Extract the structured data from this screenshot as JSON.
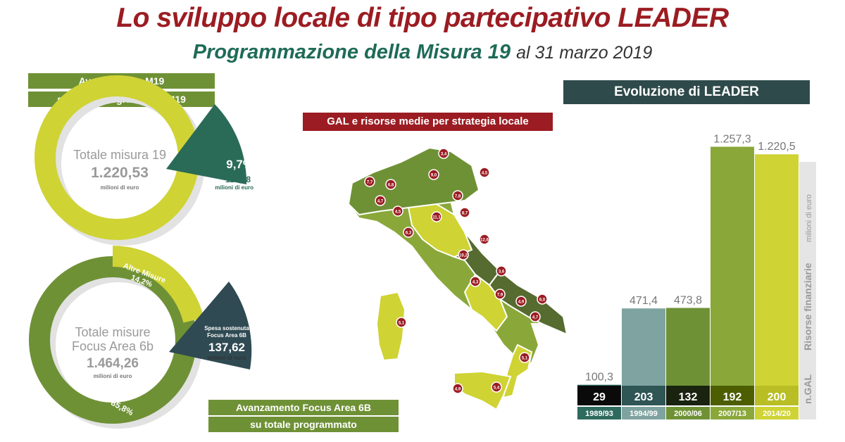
{
  "header": {
    "title": "Lo sviluppo locale di tipo partecipativo LEADER",
    "subtitle_main": "Programmazione della Misura 19",
    "subtitle_date": "al 31 marzo 2019"
  },
  "donut1": {
    "band1": "Avanzamento M19",
    "band2": "su totale programmato M19",
    "center_label": "Totale misura 19",
    "center_value": "1.220,53",
    "center_unit": "milioni di euro",
    "slice_pct": "9,7%",
    "slice_value": "118,08",
    "slice_unit": "milioni di euro",
    "slice_fraction": 0.097
  },
  "donut2": {
    "center_label_1": "Totale misure",
    "center_label_2": "Focus Area 6b",
    "center_value": "1.464,26",
    "center_unit": "milioni di euro",
    "altre_label": "Altre Misure",
    "altre_pct": "14,2%",
    "misura_label": "Misura 19 - 85,8%",
    "spesa_1": "Spesa sostenuta",
    "spesa_2": "Focus Area 6B",
    "spesa_value": "137,62",
    "spesa_unit": "milioni di euro",
    "band1": "Avanzamento Focus Area 6B",
    "band2": "su totale programmato"
  },
  "map": {
    "title": "GAL e risorse medie per strategia locale",
    "badges": [
      "3,4",
      "4,5",
      "7,7",
      "9,0",
      "6,8",
      "4,7",
      "4,5",
      "7,8",
      "11,1",
      "8,7",
      "6,3",
      "12,6",
      "10,2",
      "3,6",
      "4,3",
      "7,9",
      "4,9",
      "4,7",
      "6,0",
      "5,1",
      "5,1",
      "5,4",
      "4,9"
    ]
  },
  "leader": {
    "title": "Evoluzione di LEADER",
    "side_label_1": "Risorse finanziarie",
    "side_label_2": "milioni di euro",
    "side_label_3": "n.GAL",
    "colors": {
      "c1": "#2e6b5e",
      "c2": "#7fa3a0",
      "c3": "#6f9136",
      "c4": "#8aa83a",
      "c5": "#cfd334"
    },
    "periods": [
      {
        "period": "1989/93",
        "value": "100,3",
        "gal": "29",
        "v": 100.3
      },
      {
        "period": "1994/99",
        "value": "471,4",
        "gal": "203",
        "v": 471.4
      },
      {
        "period": "2000/06",
        "value": "473,8",
        "gal": "132",
        "v": 473.8
      },
      {
        "period": "2007/13",
        "value": "1.257,3",
        "gal": "192",
        "v": 1257.3
      },
      {
        "period": "2014/20",
        "value": "1.220,5",
        "gal": "200",
        "v": 1220.5
      }
    ]
  }
}
